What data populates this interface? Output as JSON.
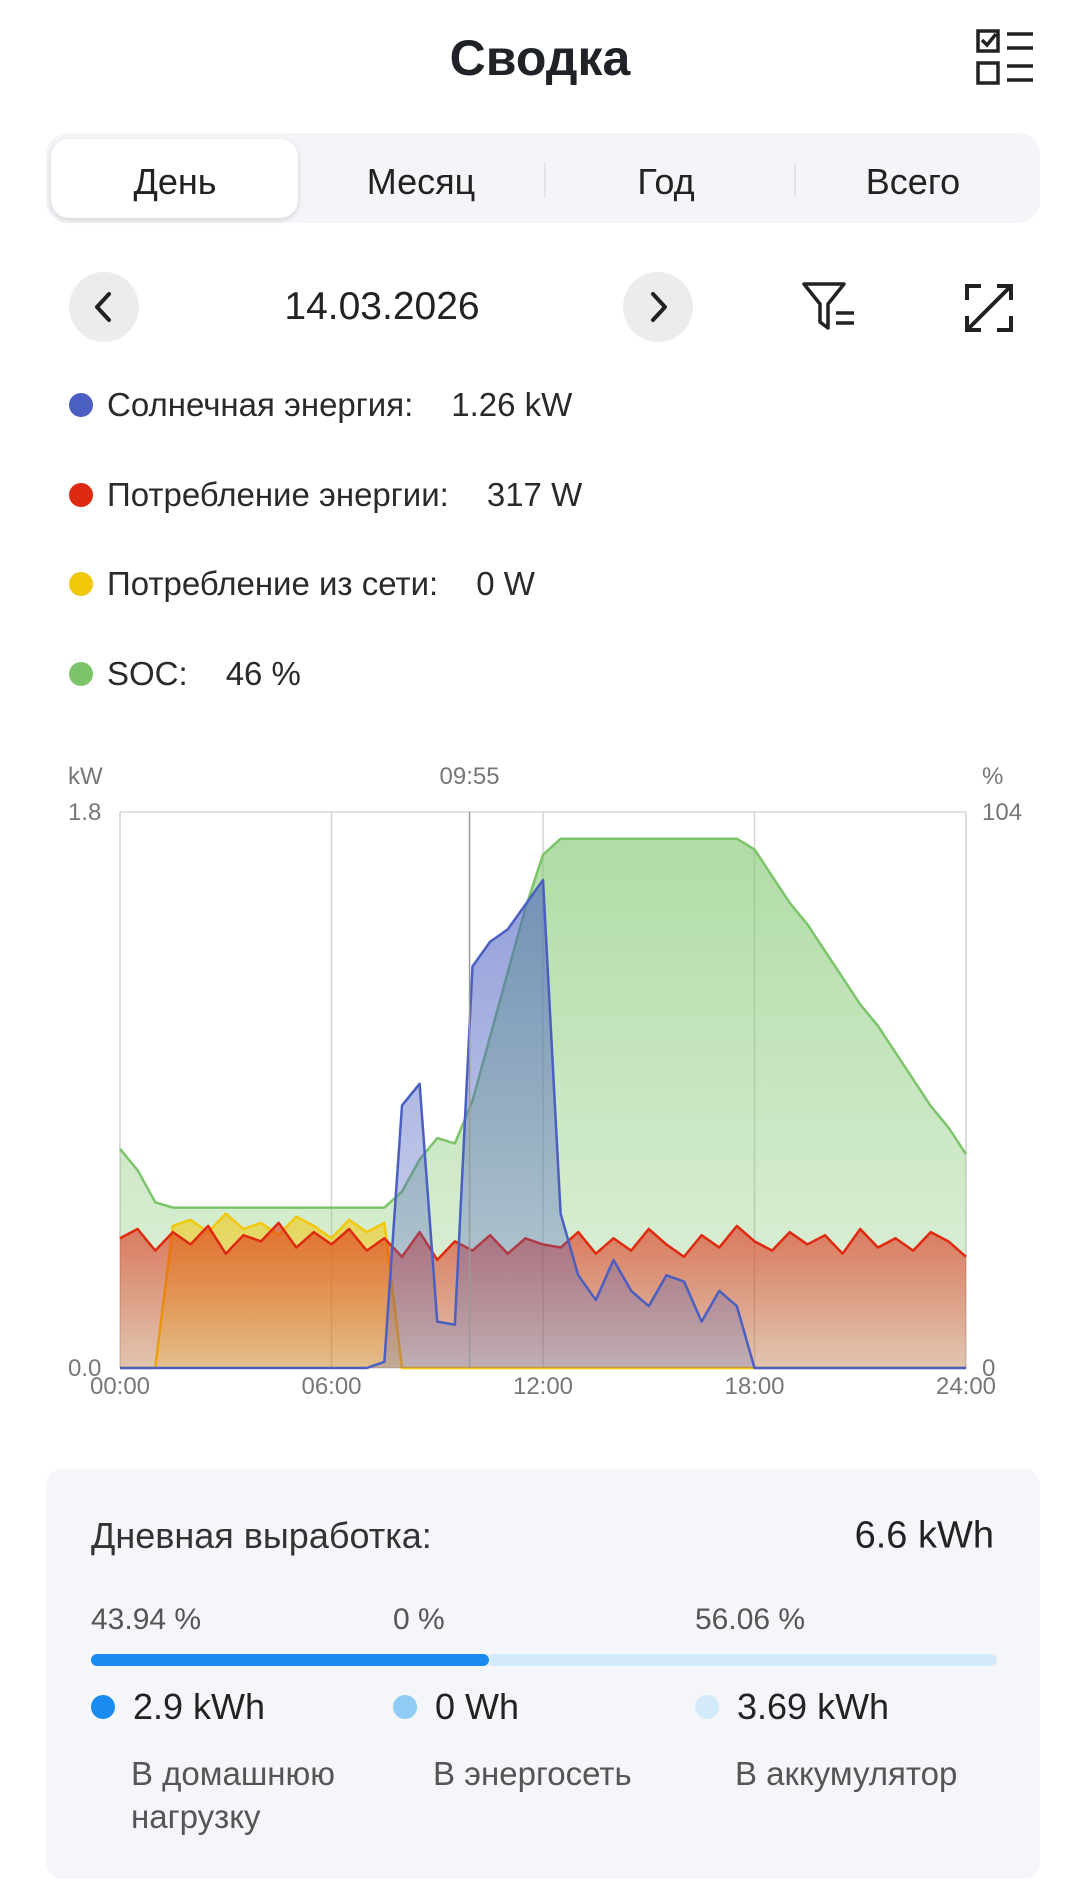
{
  "header": {
    "title": "Сводка"
  },
  "tabs": [
    "День",
    "Месяц",
    "Год",
    "Всего"
  ],
  "date": "14.03.2026",
  "chart_data": {
    "type": "area",
    "y_unit": "kW",
    "y2_unit": "%",
    "cursor": {
      "x": 9.917,
      "label": "09:55"
    },
    "xlim": [
      0,
      24
    ],
    "xticks": [
      {
        "value": 0,
        "label": "00:00"
      },
      {
        "value": 6,
        "label": "06:00"
      },
      {
        "value": 12,
        "label": "12:00"
      },
      {
        "value": 18,
        "label": "18:00"
      },
      {
        "value": 24,
        "label": "24:00"
      }
    ],
    "ylim": [
      0,
      1.8
    ],
    "yticks": [
      {
        "value": 0,
        "label": "0.0"
      },
      {
        "value": 1.8,
        "label": "1.8"
      }
    ],
    "y2lim": [
      0,
      104
    ],
    "y2ticks": [
      0,
      104
    ],
    "grid": true,
    "x": [
      0,
      0.5,
      1,
      1.5,
      2,
      2.5,
      3,
      3.5,
      4,
      4.5,
      5,
      5.5,
      6,
      6.5,
      7,
      7.5,
      8,
      8.5,
      9,
      9.5,
      10,
      10.5,
      11,
      11.5,
      12,
      12.5,
      13,
      13.5,
      14,
      14.5,
      15,
      15.5,
      16,
      16.5,
      17,
      17.5,
      18,
      18.5,
      19,
      19.5,
      20,
      20.5,
      21,
      21.5,
      22,
      22.5,
      23,
      23.5,
      24
    ],
    "series": [
      {
        "name": "Солнечная энергия:",
        "readout": "1.26 kW",
        "color": "#4a5fc1",
        "values": [
          0,
          0,
          0,
          0,
          0,
          0,
          0,
          0,
          0,
          0,
          0,
          0,
          0,
          0,
          0,
          0.02,
          0.85,
          0.92,
          0.15,
          0.14,
          1.3,
          1.38,
          1.42,
          1.5,
          1.58,
          0.5,
          0.3,
          0.22,
          0.35,
          0.25,
          0.2,
          0.3,
          0.28,
          0.15,
          0.25,
          0.2,
          0,
          0,
          0,
          0,
          0,
          0,
          0,
          0,
          0,
          0,
          0,
          0,
          0
        ]
      },
      {
        "name": "Потребление энергии:",
        "readout": "317 W",
        "color": "#de2a10",
        "values": [
          0.42,
          0.45,
          0.38,
          0.44,
          0.4,
          0.46,
          0.37,
          0.43,
          0.41,
          0.47,
          0.39,
          0.44,
          0.4,
          0.45,
          0.38,
          0.42,
          0.36,
          0.44,
          0.35,
          0.41,
          0.38,
          0.43,
          0.37,
          0.42,
          0.4,
          0.39,
          0.44,
          0.37,
          0.42,
          0.38,
          0.45,
          0.4,
          0.36,
          0.43,
          0.39,
          0.46,
          0.41,
          0.38,
          0.44,
          0.4,
          0.43,
          0.37,
          0.45,
          0.39,
          0.42,
          0.38,
          0.44,
          0.41,
          0.36
        ]
      },
      {
        "name": "Потребление из сети:",
        "readout": "0 W",
        "color": "#f2c80c",
        "values": [
          0,
          0,
          0,
          0.46,
          0.48,
          0.44,
          0.5,
          0.45,
          0.47,
          0.43,
          0.49,
          0.46,
          0.42,
          0.48,
          0.44,
          0.47,
          0,
          0,
          0,
          0,
          0,
          0,
          0,
          0,
          0,
          0,
          0,
          0,
          0,
          0,
          0,
          0,
          0,
          0,
          0,
          0,
          0,
          0,
          0,
          0,
          0,
          0,
          0,
          0,
          0,
          0,
          0,
          0,
          0
        ]
      },
      {
        "name": "SOC:",
        "readout": "46 %",
        "color": "#7cc46a",
        "axis": "y2",
        "values": [
          41,
          37,
          31,
          30,
          30,
          30,
          30,
          30,
          30,
          30,
          30,
          30,
          30,
          30,
          30,
          30,
          33,
          39,
          43,
          42,
          50,
          62,
          74,
          86,
          96,
          99,
          99,
          99,
          99,
          99,
          99,
          99,
          99,
          99,
          99,
          99,
          97,
          92,
          87,
          83,
          78,
          73,
          68,
          64,
          59,
          54,
          49,
          45,
          40
        ]
      }
    ]
  },
  "summary": {
    "title": "Дневная выработка:",
    "total": "6.6 kWh",
    "items": [
      {
        "share": {
          "value": 43.94,
          "label": "43.94 %"
        },
        "energy": "2.9 kWh",
        "label": "В домашнюю нагрузку",
        "color": "#1a8cf0"
      },
      {
        "share": {
          "value": 0,
          "label": "0 %"
        },
        "energy": "0 Wh",
        "label": "В энергосеть",
        "color": "#8ecbf5"
      },
      {
        "share": {
          "value": 56.06,
          "label": "56.06 %"
        },
        "energy": "3.69 kWh",
        "label": "В аккумулятор",
        "color": "#d3eafb"
      }
    ]
  }
}
